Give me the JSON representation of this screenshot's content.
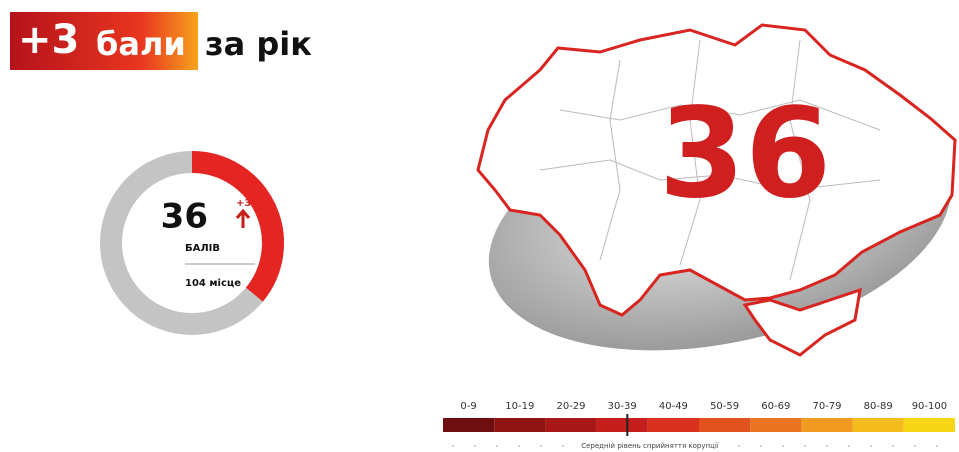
{
  "headline": {
    "change": "+3",
    "word": "бали",
    "rest": "за рік"
  },
  "donut": {
    "value": 36,
    "range": [
      0,
      100
    ],
    "change": "+3",
    "unit": "БАЛІВ",
    "rank": "104 місце",
    "color": "#e52521",
    "track": "#c4c4c4"
  },
  "scale": {
    "bins": [
      "0-9",
      "10-19",
      "20-29",
      "30-39",
      "40-49",
      "50-59",
      "60-69",
      "70-79",
      "80-89",
      "90-100"
    ],
    "colors": [
      "#6e0f0f",
      "#8e1414",
      "#a81818",
      "#c41f1d",
      "#d8321e",
      "#e2521f",
      "#ea7421",
      "#f09a22",
      "#f4bc1c",
      "#f6d715"
    ],
    "range": [
      0,
      100
    ],
    "caption": "Середній рівень сприйняття корупції"
  }
}
